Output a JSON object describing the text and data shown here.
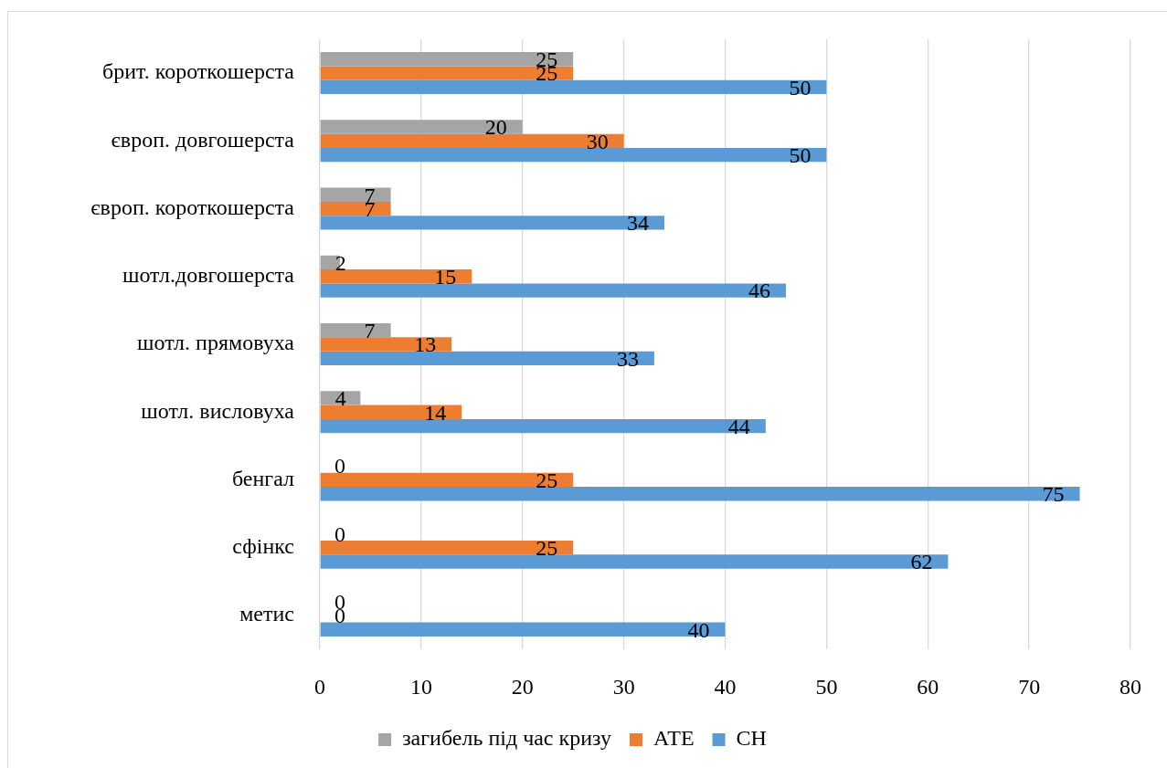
{
  "chart_data": {
    "type": "bar",
    "orientation": "horizontal",
    "categories": [
      "брит. короткошерста",
      "європ. довгошерста",
      "європ. короткошерста",
      "шотл.довгошерста",
      "шотл. прямовуха",
      "шотл. висловуха",
      "бенгал",
      "сфінкс",
      "метис"
    ],
    "series": [
      {
        "name": "загибель під час кризу",
        "color": "#a5a5a5",
        "values": [
          25,
          20,
          7,
          2,
          7,
          4,
          0,
          0,
          0
        ]
      },
      {
        "name": "АТЕ",
        "color": "#ed7d31",
        "values": [
          25,
          30,
          7,
          15,
          13,
          14,
          25,
          25,
          0
        ]
      },
      {
        "name": "СН",
        "color": "#5b9bd5",
        "values": [
          50,
          50,
          34,
          46,
          33,
          44,
          75,
          62,
          40
        ]
      }
    ],
    "xlim": [
      0,
      80
    ],
    "xticks": [
      0,
      10,
      20,
      30,
      40,
      50,
      60,
      70,
      80
    ],
    "grid": "x",
    "legend": "bottom",
    "data_labels": true
  }
}
